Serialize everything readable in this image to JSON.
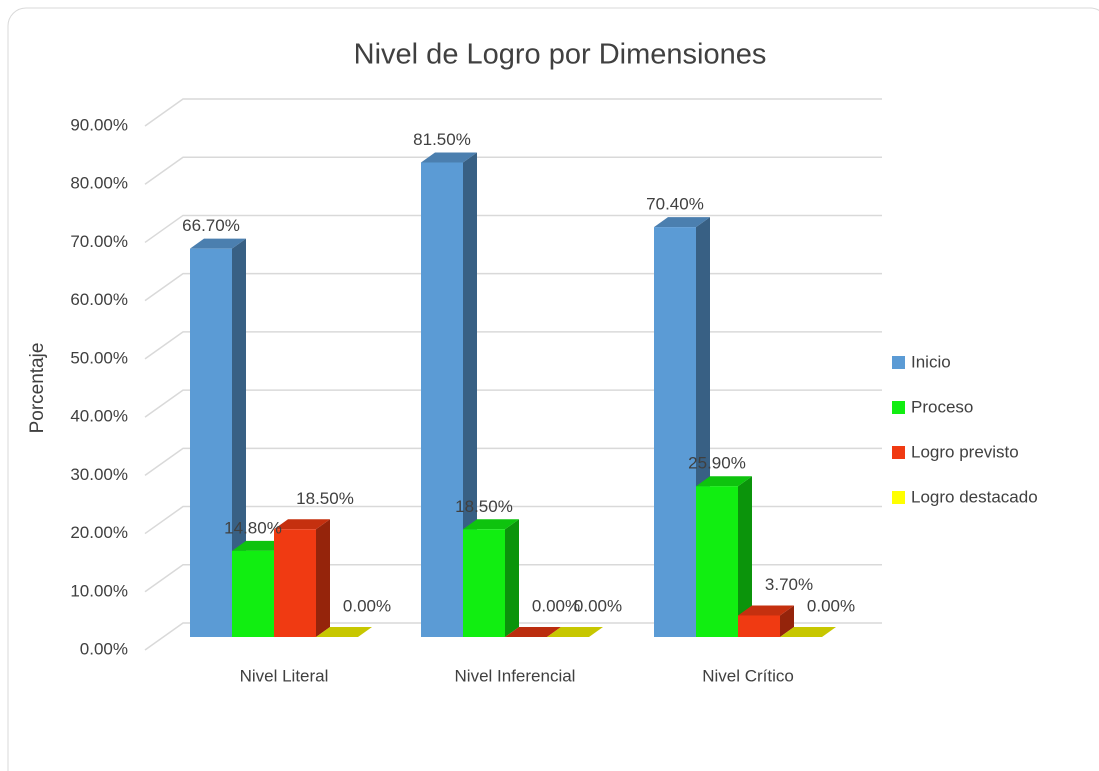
{
  "chart_data": {
    "type": "bar3d",
    "title": "Nivel de Logro por Dimensiones",
    "y_label": "Porcentaje",
    "categories": [
      "Nivel Literal",
      "Nivel Inferencial",
      "Nivel Crítico"
    ],
    "series": [
      {
        "name": "Inicio",
        "color": "#5b9bd5",
        "values": [
          66.7,
          81.5,
          70.4
        ],
        "value_labels": [
          "66.70%",
          "81.50%",
          "70.40%"
        ]
      },
      {
        "name": "Proceso",
        "color": "#11ee11",
        "values": [
          14.8,
          18.5,
          25.9
        ],
        "value_labels": [
          "14.80%",
          "18.50%",
          "25.90%"
        ]
      },
      {
        "name": "Logro previsto",
        "color": "#f03a12",
        "values": [
          18.5,
          0,
          3.7
        ],
        "value_labels": [
          "18.50%",
          "0.00%",
          "3.70%"
        ]
      },
      {
        "name": "Logro destacado",
        "color": "#ffff00",
        "values": [
          0,
          0,
          0
        ],
        "value_labels": [
          "0.00%",
          "0.00%",
          "0.00%"
        ]
      }
    ],
    "ylim": [
      0,
      90
    ],
    "yticks": [
      {
        "value": 0,
        "label": "0.00%"
      },
      {
        "value": 10,
        "label": "10.00%"
      },
      {
        "value": 20,
        "label": "20.00%"
      },
      {
        "value": 30,
        "label": "30.00%"
      },
      {
        "value": 40,
        "label": "40.00%"
      },
      {
        "value": 50,
        "label": "50.00%"
      },
      {
        "value": 60,
        "label": "60.00%"
      },
      {
        "value": 70,
        "label": "70.00%"
      },
      {
        "value": 80,
        "label": "80.00%"
      },
      {
        "value": 90,
        "label": "90.00%"
      }
    ],
    "grid": true,
    "legend": "right"
  }
}
